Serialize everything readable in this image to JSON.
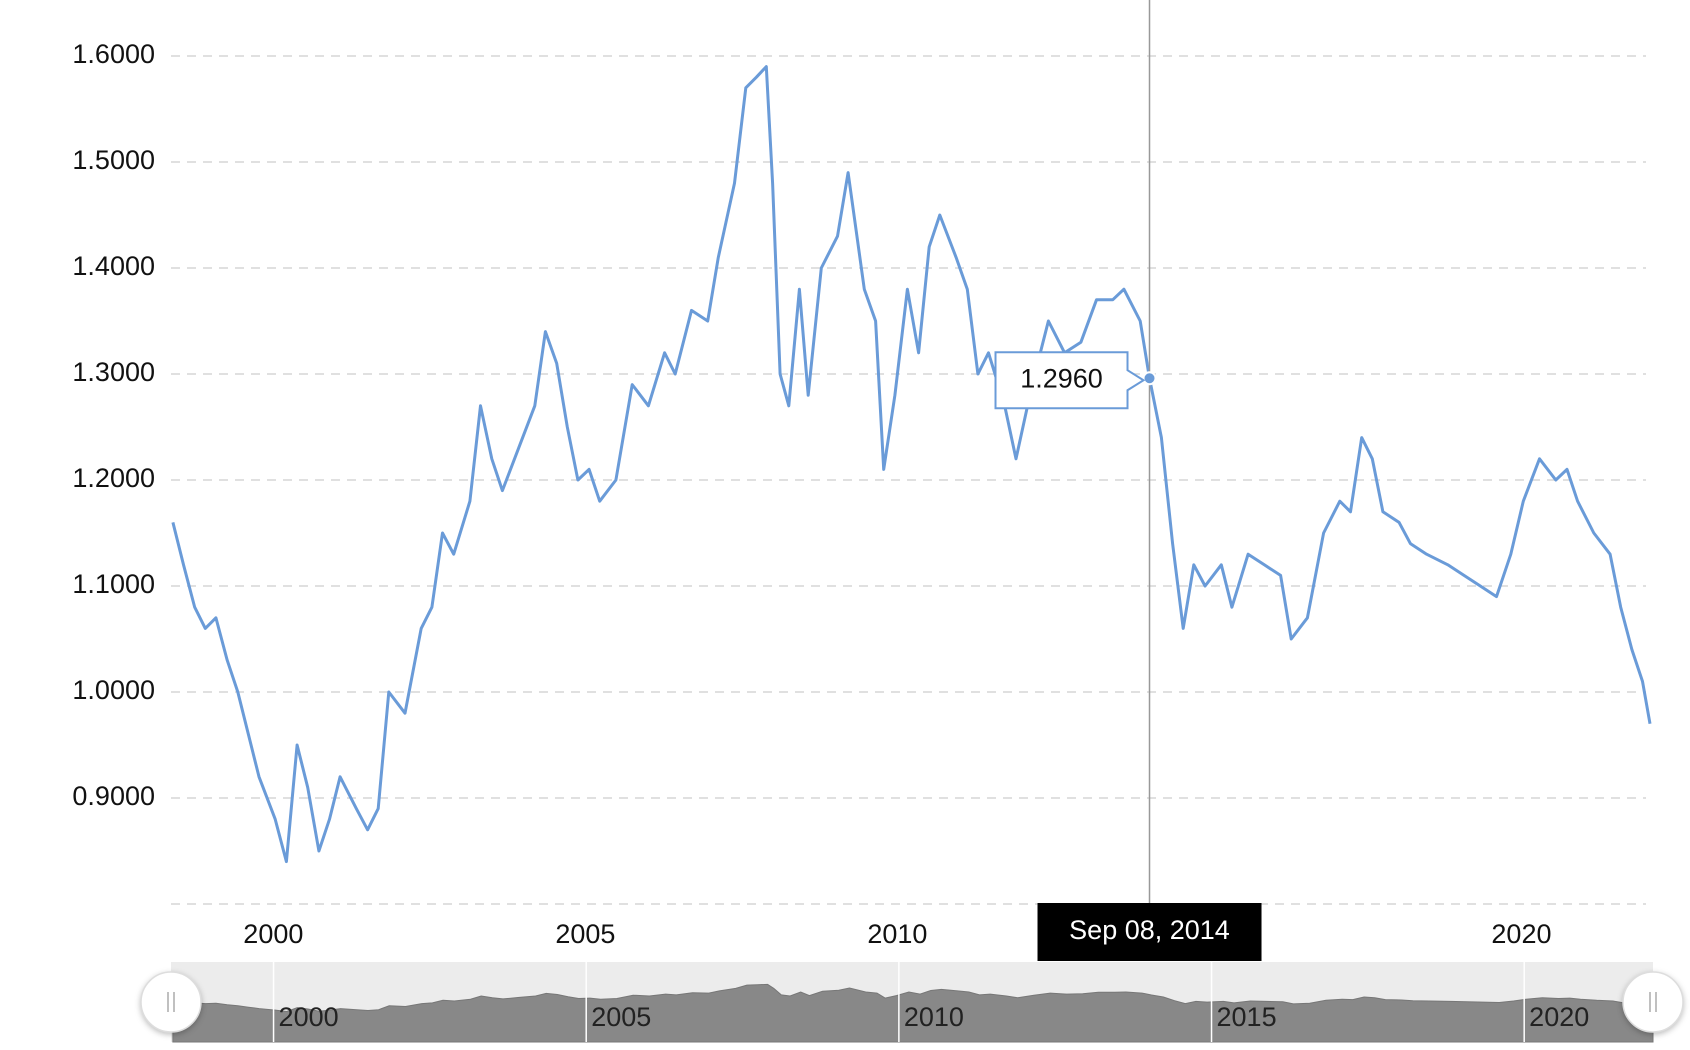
{
  "chart_data": {
    "type": "line",
    "color": "#6a9bd8",
    "x": [
      1998.39,
      1998.56,
      1998.74,
      1998.91,
      1999.08,
      1999.26,
      1999.43,
      1999.6,
      1999.77,
      2000.03,
      2000.21,
      2000.38,
      2000.55,
      2000.73,
      2000.9,
      2001.07,
      2001.33,
      2001.51,
      2001.68,
      2001.85,
      2002.11,
      2002.37,
      2002.54,
      2002.71,
      2002.89,
      2003.15,
      2003.32,
      2003.5,
      2003.67,
      2003.93,
      2004.19,
      2004.36,
      2004.54,
      2004.71,
      2004.88,
      2005.06,
      2005.23,
      2005.49,
      2005.75,
      2006.01,
      2006.27,
      2006.44,
      2006.7,
      2006.96,
      2007.13,
      2007.39,
      2007.57,
      2007.74,
      2007.9,
      2008.0,
      2008.12,
      2008.26,
      2008.43,
      2008.57,
      2008.78,
      2009.04,
      2009.21,
      2009.47,
      2009.65,
      2009.78,
      2009.96,
      2010.16,
      2010.34,
      2010.51,
      2010.68,
      2010.94,
      2011.12,
      2011.29,
      2011.46,
      2011.72,
      2011.9,
      2012.16,
      2012.42,
      2012.68,
      2012.94,
      2013.19,
      2013.45,
      2013.63,
      2013.89,
      2014.04,
      2014.23,
      2014.41,
      2014.58,
      2014.75,
      2014.93,
      2015.19,
      2015.36,
      2015.62,
      2015.88,
      2016.14,
      2016.31,
      2016.57,
      2016.83,
      2017.09,
      2017.26,
      2017.44,
      2017.61,
      2017.78,
      2018.04,
      2018.22,
      2018.48,
      2018.82,
      2019.08,
      2019.34,
      2019.6,
      2019.83,
      2020.03,
      2020.29,
      2020.55,
      2020.73,
      2020.9,
      2021.16,
      2021.42,
      2021.59,
      2021.77,
      2021.94,
      2022.06
    ],
    "values": [
      1.16,
      1.12,
      1.08,
      1.06,
      1.07,
      1.03,
      1.0,
      0.96,
      0.92,
      0.88,
      0.84,
      0.95,
      0.91,
      0.85,
      0.88,
      0.92,
      0.89,
      0.87,
      0.89,
      1.0,
      0.98,
      1.06,
      1.08,
      1.15,
      1.13,
      1.18,
      1.27,
      1.22,
      1.19,
      1.23,
      1.27,
      1.34,
      1.31,
      1.25,
      1.2,
      1.21,
      1.18,
      1.2,
      1.29,
      1.27,
      1.32,
      1.3,
      1.36,
      1.35,
      1.41,
      1.48,
      1.57,
      1.58,
      1.59,
      1.48,
      1.3,
      1.27,
      1.38,
      1.28,
      1.4,
      1.43,
      1.49,
      1.38,
      1.35,
      1.21,
      1.28,
      1.38,
      1.32,
      1.42,
      1.45,
      1.41,
      1.38,
      1.3,
      1.32,
      1.27,
      1.22,
      1.29,
      1.35,
      1.32,
      1.33,
      1.37,
      1.37,
      1.38,
      1.35,
      1.296,
      1.24,
      1.14,
      1.06,
      1.12,
      1.1,
      1.12,
      1.08,
      1.13,
      1.12,
      1.11,
      1.05,
      1.07,
      1.15,
      1.18,
      1.17,
      1.24,
      1.22,
      1.17,
      1.16,
      1.14,
      1.13,
      1.12,
      1.11,
      1.1,
      1.09,
      1.13,
      1.18,
      1.22,
      1.2,
      1.21,
      1.18,
      1.15,
      1.13,
      1.08,
      1.04,
      1.01,
      0.97
    ],
    "xlim": [
      1998.36,
      2022.06
    ],
    "xticks": [
      2000,
      2005,
      2010,
      2015,
      2020
    ],
    "ylim": [
      0.8,
      1.6
    ],
    "yticks": [
      {
        "value": 0.9,
        "label": "0.9000"
      },
      {
        "value": 1.0,
        "label": "1.0000"
      },
      {
        "value": 1.1,
        "label": "1.1000"
      },
      {
        "value": 1.2,
        "label": "1.2000"
      },
      {
        "value": 1.3,
        "label": "1.3000"
      },
      {
        "value": 1.4,
        "label": "1.4000"
      },
      {
        "value": 1.5,
        "label": "1.5000"
      },
      {
        "value": 1.6,
        "label": "1.6000"
      }
    ],
    "grid": true,
    "tooltip": {
      "x": 2014.04,
      "date": "Sep 08, 2014",
      "value": {
        "value": 1.296,
        "label": "1.2960"
      }
    }
  }
}
